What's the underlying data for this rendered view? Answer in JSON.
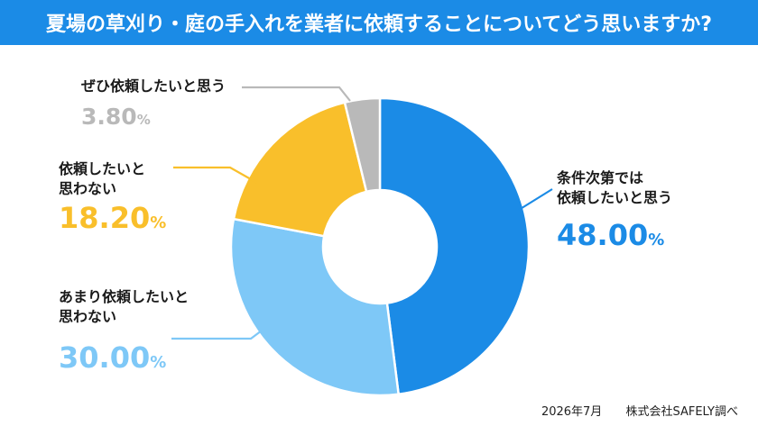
{
  "title": "夏場の草刈り・庭の手入れを業者に依頼することについてどう思いますか?",
  "colors": {
    "title_bg": "#1b8be6",
    "blue": "#1b8be6",
    "light_blue": "#7ec8f7",
    "yellow": "#f9bf2b",
    "gray": "#b9b9b9"
  },
  "chart_data": {
    "type": "pie",
    "donut": true,
    "unit": "%",
    "slices": [
      {
        "label_lines": [
          "条件次第では",
          "依頼したいと思う"
        ],
        "value": 48.0,
        "display": "48.00",
        "color": "#1b8be6"
      },
      {
        "label_lines": [
          "あまり依頼したいと",
          "思わない"
        ],
        "value": 30.0,
        "display": "30.00",
        "color": "#7ec8f7"
      },
      {
        "label_lines": [
          "依頼したいと",
          "思わない"
        ],
        "value": 18.2,
        "display": "18.20",
        "color": "#f9bf2b"
      },
      {
        "label_lines": [
          "ぜひ依頼したいと思う"
        ],
        "value": 3.8,
        "display": "3.80",
        "color": "#b9b9b9"
      }
    ]
  },
  "footer": {
    "date": "2026年7月",
    "source": "株式会社SAFELY調べ"
  }
}
